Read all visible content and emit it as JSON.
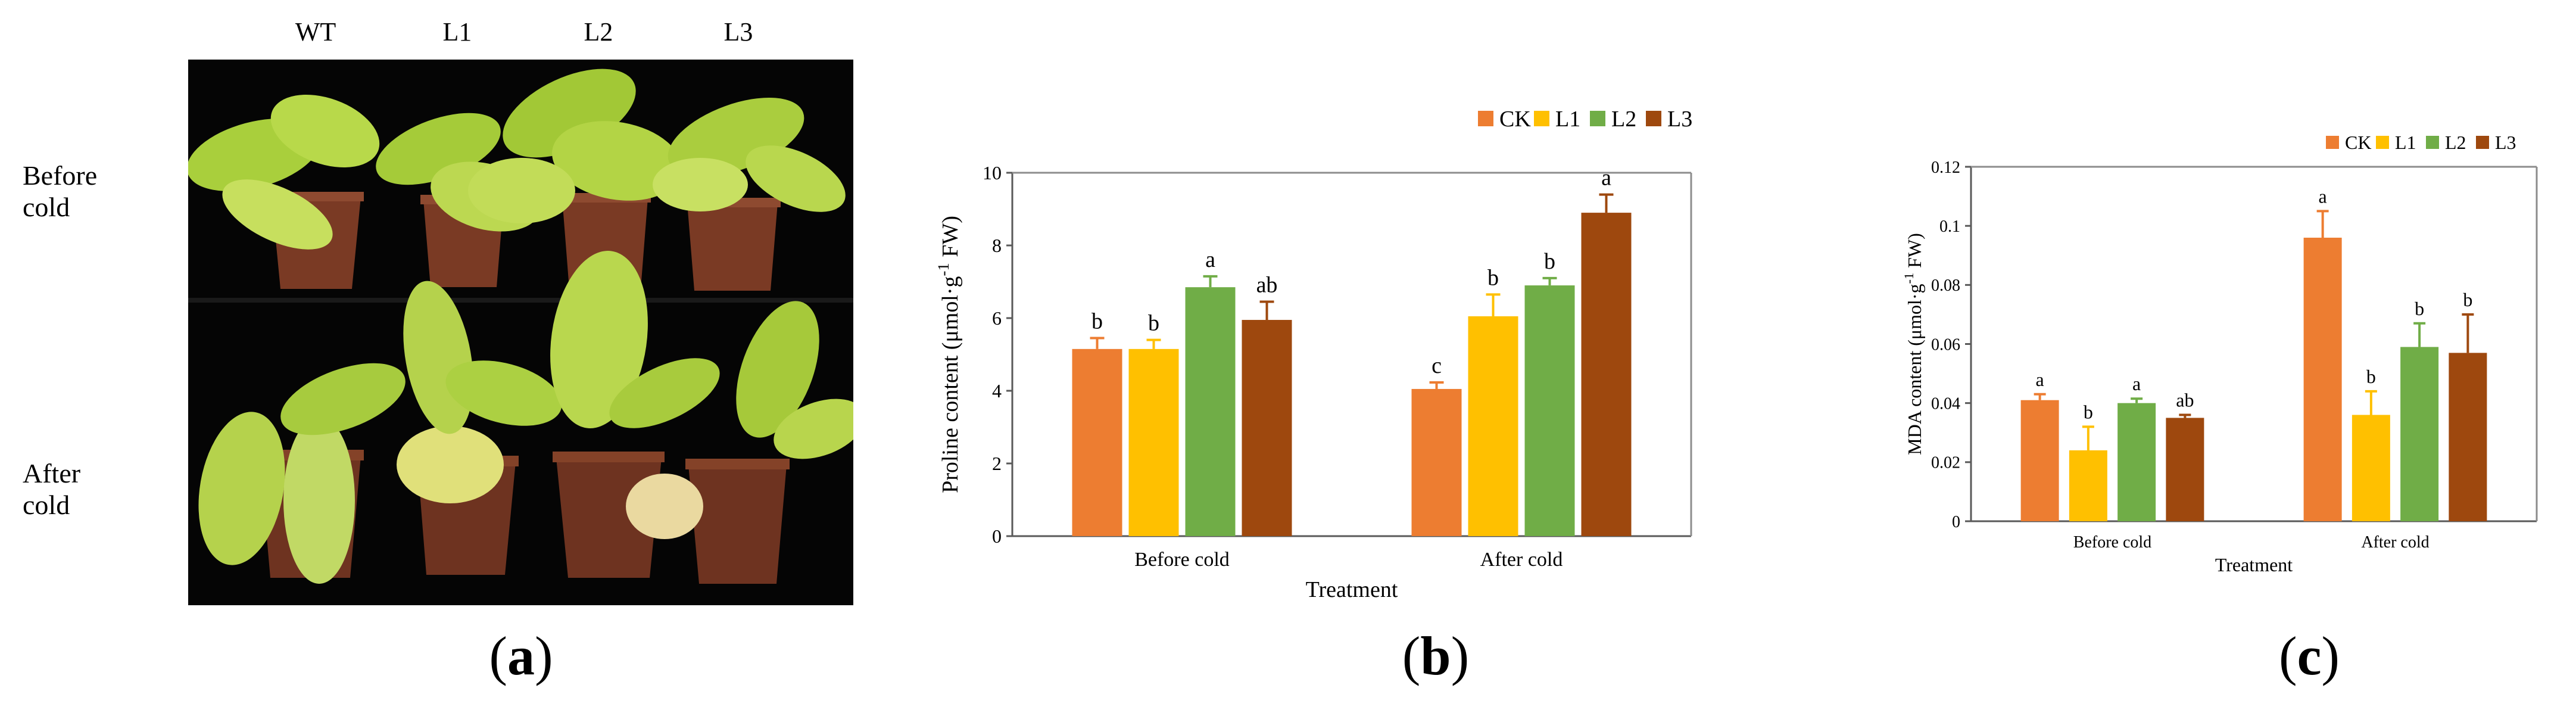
{
  "panel_a": {
    "letter_open": "(",
    "letter": "a",
    "letter_close": ")",
    "column_labels": [
      "WT",
      "L1",
      "L2",
      "L3"
    ],
    "row_labels": [
      "Before cold",
      "After cold"
    ]
  },
  "panel_b": {
    "letter_open": "(",
    "letter": "b",
    "letter_close": ")"
  },
  "panel_c": {
    "letter_open": "(",
    "letter": "c",
    "letter_close": ")"
  },
  "colors": {
    "CK": "#ED7D31",
    "L1": "#FFC000",
    "L2": "#70AD47",
    "L3": "#9E480E"
  },
  "chart_data": [
    {
      "type": "bar",
      "panel": "b",
      "ylabel_main": "Proline content (μmol·g",
      "ylabel_sup": "-1",
      "ylabel_end": " FW)",
      "xlabel": "Treatment",
      "categories": [
        "Before cold",
        "After cold"
      ],
      "legend": [
        "CK",
        "L1",
        "L2",
        "L3"
      ],
      "legend_position": "top-right",
      "ylim": [
        0,
        10
      ],
      "yticks": [
        0,
        2,
        4,
        6,
        8,
        10
      ],
      "series": [
        {
          "name": "CK",
          "values": [
            5.15,
            4.05
          ],
          "errors": [
            0.3,
            0.18
          ],
          "letters": [
            "b",
            "c"
          ]
        },
        {
          "name": "L1",
          "values": [
            5.15,
            6.05
          ],
          "errors": [
            0.25,
            0.6
          ],
          "letters": [
            "b",
            "b"
          ]
        },
        {
          "name": "L2",
          "values": [
            6.85,
            6.9
          ],
          "errors": [
            0.3,
            0.2
          ],
          "letters": [
            "a",
            "b"
          ]
        },
        {
          "name": "L3",
          "values": [
            5.95,
            8.9
          ],
          "errors": [
            0.5,
            0.5
          ],
          "letters": [
            "ab",
            "a"
          ]
        }
      ]
    },
    {
      "type": "bar",
      "panel": "c",
      "ylabel_main": "MDA content (μmol·g",
      "ylabel_sup": "-1",
      "ylabel_end": " FW)",
      "xlabel": "Treatment",
      "categories": [
        "Before cold",
        "After cold"
      ],
      "legend": [
        "CK",
        "L1",
        "L2",
        "L3"
      ],
      "legend_position": "top-right",
      "ylim": [
        0,
        0.12
      ],
      "yticks": [
        0,
        0.02,
        0.04,
        0.06,
        0.08,
        0.1,
        0.12
      ],
      "ytick_labels": [
        "0",
        "0.02",
        "0.04",
        "0.06",
        "0.08",
        "0.1",
        "0.12"
      ],
      "series": [
        {
          "name": "CK",
          "values": [
            0.041,
            0.096
          ],
          "errors": [
            0.002,
            0.009
          ],
          "letters": [
            "a",
            "a"
          ]
        },
        {
          "name": "L1",
          "values": [
            0.024,
            0.036
          ],
          "errors": [
            0.008,
            0.008
          ],
          "letters": [
            "b",
            "b"
          ]
        },
        {
          "name": "L2",
          "values": [
            0.04,
            0.059
          ],
          "errors": [
            0.0015,
            0.008
          ],
          "letters": [
            "a",
            "b"
          ]
        },
        {
          "name": "L3",
          "values": [
            0.035,
            0.057
          ],
          "errors": [
            0.001,
            0.013
          ],
          "letters": [
            "ab",
            "b"
          ]
        }
      ]
    }
  ]
}
